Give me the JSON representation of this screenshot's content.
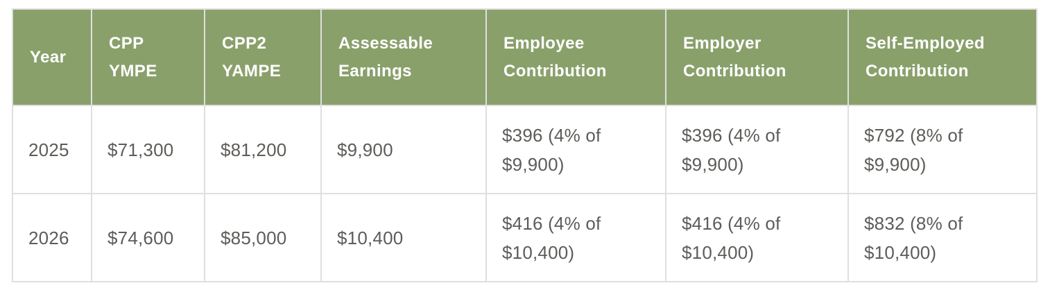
{
  "theme": {
    "header_bg": "#8aa06b",
    "header_text": "#ffffff",
    "body_text": "#5e5c59",
    "border": "#dfdfdf",
    "background": "#ffffff"
  },
  "table": {
    "headers": [
      "Year",
      "CPP\nYMPE",
      "CPP2\nYAMPE",
      "Assessable\nEarnings",
      "Employee\nContribution",
      "Employer\nContribution",
      "Self-Employed\nContribution"
    ],
    "rows": [
      [
        "2025",
        "$71,300",
        "$81,200",
        "$9,900",
        "$396 (4% of\n$9,900)",
        "$396 (4% of\n$9,900)",
        "$792 (8% of\n$9,900)"
      ],
      [
        "2026",
        "$74,600",
        "$85,000",
        "$10,400",
        "$416 (4% of\n$10,400)",
        "$416 (4% of\n$10,400)",
        "$832 (8% of\n$10,400)"
      ]
    ]
  }
}
